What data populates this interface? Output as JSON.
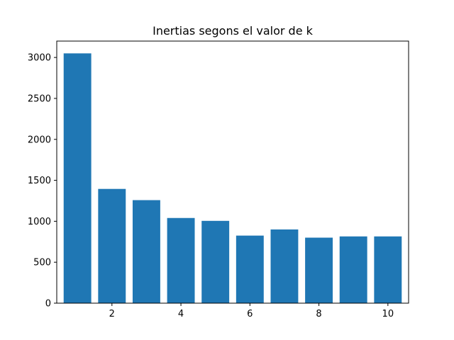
{
  "chart_data": {
    "type": "bar",
    "title": "Inertias segons el valor de k",
    "xlabel": "",
    "ylabel": "",
    "x": [
      1,
      2,
      3,
      4,
      5,
      6,
      7,
      8,
      9,
      10
    ],
    "values": [
      3050,
      1395,
      1258,
      1040,
      1005,
      825,
      900,
      800,
      815,
      815
    ],
    "xlim": [
      0.4,
      10.6
    ],
    "ylim": [
      0,
      3200
    ],
    "xticks": [
      2,
      4,
      6,
      8,
      10
    ],
    "yticks": [
      0,
      500,
      1000,
      1500,
      2000,
      2500,
      3000
    ],
    "bar_color": "#1f77b4",
    "grid": false
  }
}
